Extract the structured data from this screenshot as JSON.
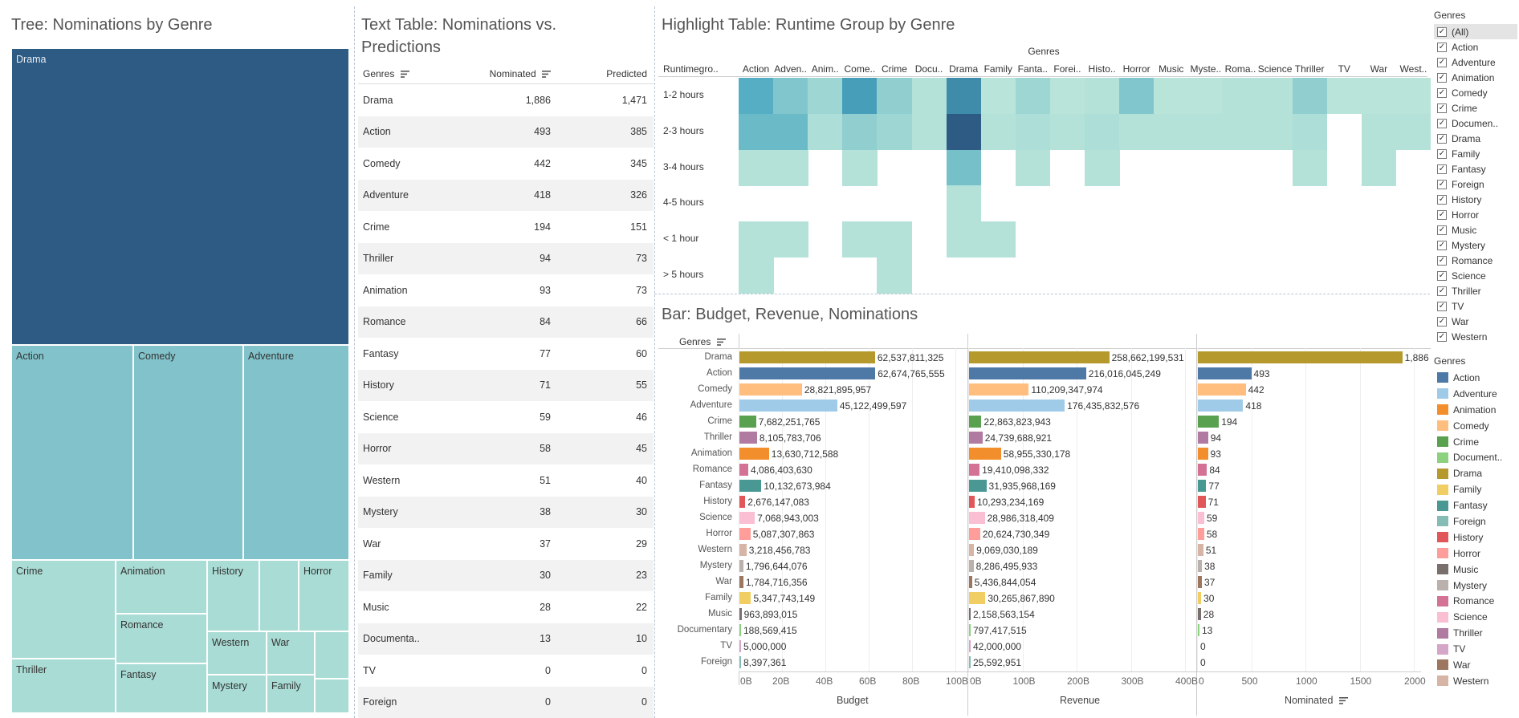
{
  "titles": {
    "tree": "Tree: Nominations by Genre",
    "text_table": "Text Table: Nominations vs. Predictions",
    "highlight": "Highlight Table: Runtime Group by Genre",
    "bar": "Bar: Budget, Revenue, Nominations"
  },
  "treemap": {
    "cells": [
      "Drama",
      "Action",
      "Comedy",
      "Adventure",
      "Crime",
      "Animation",
      "History",
      "Horror",
      "Romance",
      "Western",
      "War",
      "Thriller",
      "Fantasy",
      "Mystery",
      "Family"
    ]
  },
  "text_table": {
    "headers": {
      "genres": "Genres",
      "nominated": "Nominated",
      "predicted": "Predicted"
    },
    "rows": [
      {
        "genre": "Drama",
        "nominated": "1,886",
        "predicted": "1,471"
      },
      {
        "genre": "Action",
        "nominated": "493",
        "predicted": "385"
      },
      {
        "genre": "Comedy",
        "nominated": "442",
        "predicted": "345"
      },
      {
        "genre": "Adventure",
        "nominated": "418",
        "predicted": "326"
      },
      {
        "genre": "Crime",
        "nominated": "194",
        "predicted": "151"
      },
      {
        "genre": "Thriller",
        "nominated": "94",
        "predicted": "73"
      },
      {
        "genre": "Animation",
        "nominated": "93",
        "predicted": "73"
      },
      {
        "genre": "Romance",
        "nominated": "84",
        "predicted": "66"
      },
      {
        "genre": "Fantasy",
        "nominated": "77",
        "predicted": "60"
      },
      {
        "genre": "History",
        "nominated": "71",
        "predicted": "55"
      },
      {
        "genre": "Science",
        "nominated": "59",
        "predicted": "46"
      },
      {
        "genre": "Horror",
        "nominated": "58",
        "predicted": "45"
      },
      {
        "genre": "Western",
        "nominated": "51",
        "predicted": "40"
      },
      {
        "genre": "Mystery",
        "nominated": "38",
        "predicted": "30"
      },
      {
        "genre": "War",
        "nominated": "37",
        "predicted": "29"
      },
      {
        "genre": "Family",
        "nominated": "30",
        "predicted": "23"
      },
      {
        "genre": "Music",
        "nominated": "28",
        "predicted": "22"
      },
      {
        "genre": "Documenta..",
        "nominated": "13",
        "predicted": "10"
      },
      {
        "genre": "TV",
        "nominated": "0",
        "predicted": "0"
      },
      {
        "genre": "Foreign",
        "nominated": "0",
        "predicted": "0"
      }
    ]
  },
  "highlight_table": {
    "column_group_label": "Genres",
    "row_header": "Runtimegro..",
    "columns": [
      "Action",
      "Adven..",
      "Anim..",
      "Come..",
      "Crime",
      "Docu..",
      "Drama",
      "Family",
      "Fanta..",
      "Forei..",
      "Histo..",
      "Horror",
      "Music",
      "Myste..",
      "Roma..",
      "Science",
      "Thriller",
      "TV",
      "War",
      "West.."
    ],
    "rows": [
      "1-2 hours",
      "2-3 hours",
      "3-4 hours",
      "4-5 hours",
      "< 1 hour",
      "> 5 hours"
    ],
    "intensity": [
      [
        0.55,
        0.35,
        0.22,
        0.65,
        0.28,
        0.12,
        0.75,
        0.1,
        0.22,
        0.1,
        0.12,
        0.35,
        0.1,
        0.1,
        0.12,
        0.12,
        0.28,
        0.1,
        0.1,
        0.1
      ],
      [
        0.45,
        0.45,
        0.15,
        0.28,
        0.22,
        0.12,
        1.0,
        0.12,
        0.15,
        0.12,
        0.15,
        0.12,
        0.12,
        0.12,
        0.12,
        0.12,
        0.15,
        null,
        0.12,
        0.12
      ],
      [
        0.12,
        0.12,
        null,
        0.12,
        null,
        null,
        0.4,
        null,
        0.12,
        null,
        0.12,
        null,
        null,
        null,
        null,
        null,
        0.12,
        null,
        0.12,
        null
      ],
      [
        null,
        null,
        null,
        null,
        null,
        null,
        0.12,
        null,
        null,
        null,
        null,
        null,
        null,
        null,
        null,
        null,
        null,
        null,
        null,
        null
      ],
      [
        0.12,
        0.12,
        null,
        0.12,
        0.12,
        null,
        0.12,
        0.12,
        null,
        null,
        null,
        null,
        null,
        null,
        null,
        null,
        null,
        null,
        null,
        null
      ],
      [
        0.12,
        null,
        null,
        null,
        0.12,
        null,
        null,
        null,
        null,
        null,
        null,
        null,
        null,
        null,
        null,
        null,
        null,
        null,
        null,
        null
      ]
    ]
  },
  "bar_chart": {
    "rows_header": "Genres",
    "axes": {
      "budget": {
        "title": "Budget",
        "ticks": [
          "0B",
          "20B",
          "40B",
          "60B",
          "80B",
          "100B"
        ],
        "max": 100
      },
      "revenue": {
        "title": "Revenue",
        "ticks": [
          "0B",
          "100B",
          "200B",
          "300B",
          "400B"
        ],
        "max": 400
      },
      "nominated": {
        "title": "Nominated",
        "ticks": [
          "0",
          "500",
          "1000",
          "1500",
          "2000"
        ],
        "max": 2000
      }
    }
  },
  "chart_data": {
    "type": "bar",
    "title": "Bar: Budget, Revenue, Nominations",
    "categories": [
      "Drama",
      "Action",
      "Comedy",
      "Adventure",
      "Crime",
      "Thriller",
      "Animation",
      "Romance",
      "Fantasy",
      "History",
      "Science",
      "Horror",
      "Western",
      "Mystery",
      "War",
      "Family",
      "Music",
      "Documentary",
      "TV",
      "Foreign"
    ],
    "series": [
      {
        "name": "Budget",
        "values": [
          62537811325,
          62674765555,
          28821895957,
          45122499597,
          7682251765,
          8105783706,
          13630712588,
          4086403630,
          10132673984,
          2676147083,
          7068943003,
          5087307863,
          3218456783,
          1796644076,
          1784716356,
          5347743149,
          963893015,
          188569415,
          5000000,
          8397361
        ],
        "labels": [
          "62,537,811,325",
          "62,674,765,555",
          "28,821,895,957",
          "45,122,499,597",
          "7,682,251,765",
          "8,105,783,706",
          "13,630,712,588",
          "4,086,403,630",
          "10,132,673,984",
          "2,676,147,083",
          "7,068,943,003",
          "5,087,307,863",
          "3,218,456,783",
          "1,796,644,076",
          "1,784,716,356",
          "5,347,743,149",
          "963,893,015",
          "188,569,415",
          "5,000,000",
          "8,397,361"
        ]
      },
      {
        "name": "Revenue",
        "values": [
          258662199531,
          216016045249,
          110209347974,
          176435832576,
          22863823943,
          24739688921,
          58955330178,
          19410098332,
          31935968169,
          10293234169,
          28986318409,
          20624730349,
          9069030189,
          8286495933,
          5436844054,
          30265867890,
          2158563154,
          797417515,
          42000000,
          25592951
        ],
        "labels": [
          "258,662,199,531",
          "216,016,045,249",
          "110,209,347,974",
          "176,435,832,576",
          "22,863,823,943",
          "24,739,688,921",
          "58,955,330,178",
          "19,410,098,332",
          "31,935,968,169",
          "10,293,234,169",
          "28,986,318,409",
          "20,624,730,349",
          "9,069,030,189",
          "8,286,495,933",
          "5,436,844,054",
          "30,265,867,890",
          "2,158,563,154",
          "797,417,515",
          "42,000,000",
          "25,592,951"
        ]
      },
      {
        "name": "Nominated",
        "values": [
          1886,
          493,
          442,
          418,
          194,
          94,
          93,
          84,
          77,
          71,
          59,
          58,
          51,
          38,
          37,
          30,
          28,
          13,
          0,
          0
        ],
        "labels": [
          "1,886",
          "493",
          "442",
          "418",
          "194",
          "94",
          "93",
          "84",
          "77",
          "71",
          "59",
          "58",
          "51",
          "38",
          "37",
          "30",
          "28",
          "13",
          "0",
          "0"
        ]
      }
    ]
  },
  "genre_colors": {
    "Action": "#4e79a7",
    "Adventure": "#a0cbe8",
    "Animation": "#f28e2b",
    "Comedy": "#ffbe7d",
    "Crime": "#59a14f",
    "Documentary": "#8cd17d",
    "Drama": "#b6992d",
    "Family": "#f1ce63",
    "Fantasy": "#499894",
    "Foreign": "#86bcb6",
    "History": "#e15759",
    "Horror": "#ff9d9a",
    "Music": "#79706e",
    "Mystery": "#bab0ac",
    "Romance": "#d37295",
    "Science": "#fabfd2",
    "Thriller": "#b07aa1",
    "TV": "#d4a6c8",
    "War": "#9d7660",
    "Western": "#d7b5a6"
  },
  "filter": {
    "title": "Genres",
    "items": [
      "(All)",
      "Action",
      "Adventure",
      "Animation",
      "Comedy",
      "Crime",
      "Documen..",
      "Drama",
      "Family",
      "Fantasy",
      "Foreign",
      "History",
      "Horror",
      "Music",
      "Mystery",
      "Romance",
      "Science",
      "Thriller",
      "TV",
      "War",
      "Western"
    ]
  },
  "legend": {
    "title": "Genres",
    "items": [
      "Action",
      "Adventure",
      "Animation",
      "Comedy",
      "Crime",
      "Document..",
      "Drama",
      "Family",
      "Fantasy",
      "Foreign",
      "History",
      "Horror",
      "Music",
      "Mystery",
      "Romance",
      "Science",
      "Thriller",
      "TV",
      "War",
      "Western"
    ]
  }
}
